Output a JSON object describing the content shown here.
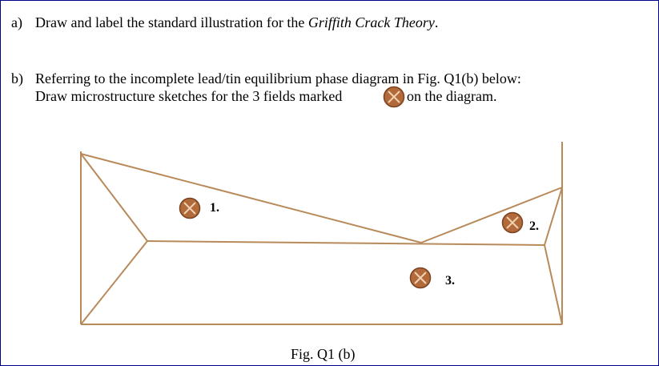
{
  "question_a": {
    "label": "a)",
    "text": "Draw and label the standard illustration for the ",
    "emphasis": "Griffith Crack Theory",
    "end": "."
  },
  "question_b": {
    "label": "b)",
    "line1": "Referring to the incomplete lead/tin equilibrium phase diagram in Fig. Q1(b) below:",
    "line2_before": "Draw microstructure sketches for the 3 fields marked",
    "line2_after": "on the diagram."
  },
  "diagram": {
    "markers": [
      {
        "label": "1."
      },
      {
        "label": "2."
      },
      {
        "label": "3."
      }
    ],
    "caption": "Fig. Q1 (b)"
  }
}
